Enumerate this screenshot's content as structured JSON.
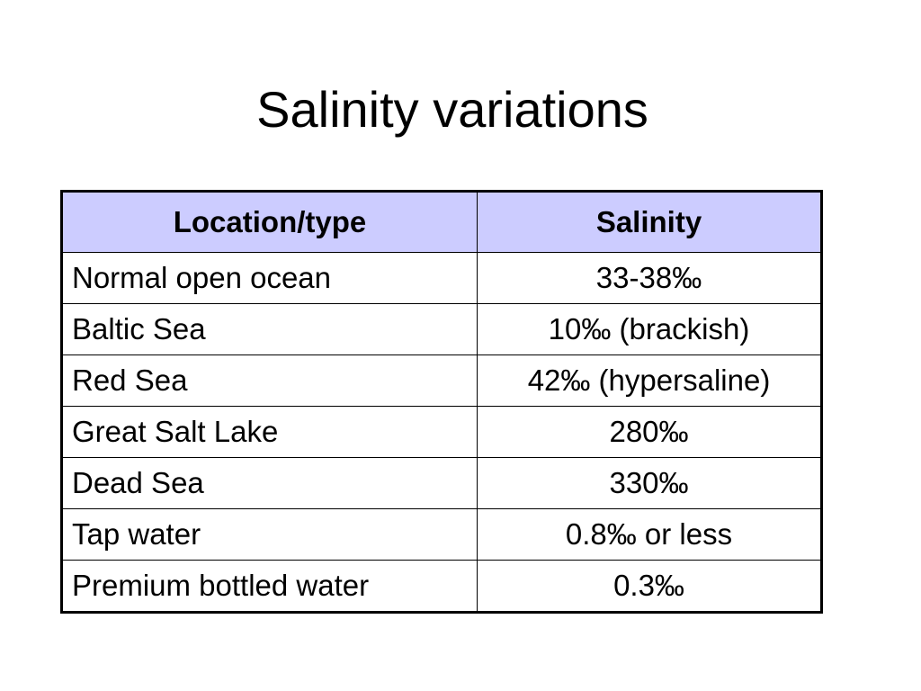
{
  "slide": {
    "title": "Salinity variations"
  },
  "table": {
    "header_background": "#ccccff",
    "headers": [
      "Location/type",
      "Salinity"
    ],
    "rows": [
      {
        "location": "Normal open ocean",
        "salinity": "33-38‰"
      },
      {
        "location": "Baltic Sea",
        "salinity": "10‰ (brackish)"
      },
      {
        "location": "Red Sea",
        "salinity": "42‰ (hypersaline)"
      },
      {
        "location": "Great Salt Lake",
        "salinity": "280‰"
      },
      {
        "location": "Dead Sea",
        "salinity": "330‰"
      },
      {
        "location": "Tap water",
        "salinity": "0.8‰ or less"
      },
      {
        "location": "Premium bottled water",
        "salinity": "0.3‰"
      }
    ]
  }
}
